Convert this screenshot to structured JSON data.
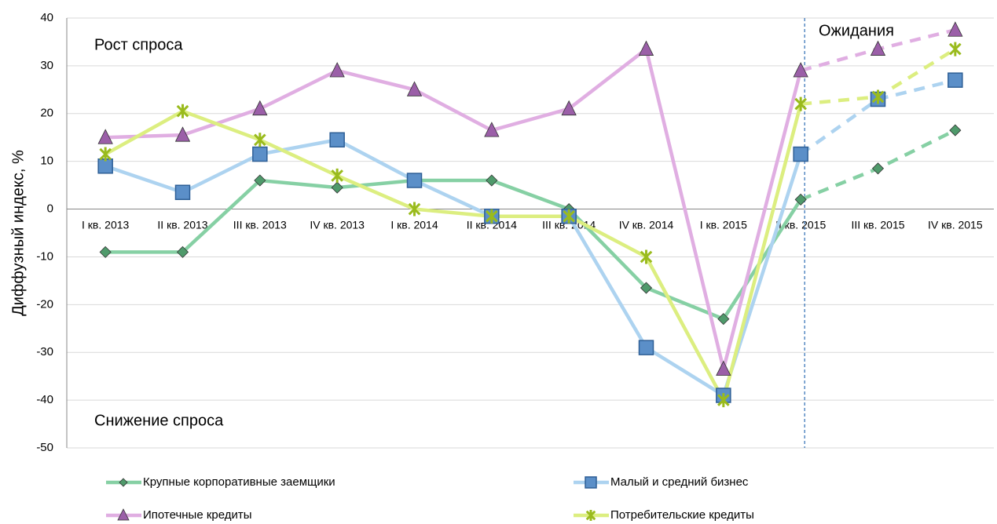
{
  "chart_data": {
    "type": "line",
    "y_label": "Диффузный индекс, %",
    "annotations": [
      "Рост спроса",
      "Снижение спроса",
      "Ожидания"
    ],
    "categories": [
      "I кв. 2013",
      "II кв. 2013",
      "III кв. 2013",
      "IV кв. 2013",
      "I кв. 2014",
      "II кв. 2014",
      "III кв. 2014",
      "IV кв. 2014",
      "I кв. 2015",
      "II кв. 2015",
      "III кв. 2015",
      "IV кв. 2015"
    ],
    "series": [
      {
        "name": "Крупные корпоративные заемщики",
        "color": "#86d0a4",
        "marker": "diamond",
        "marker_color": "#4f9a6b",
        "values": [
          -9,
          -9,
          6,
          4.5,
          6,
          6,
          0,
          -16.5,
          -23,
          2,
          8.5,
          16.5
        ]
      },
      {
        "name": "Малый и средний бизнес",
        "color": "#add3f0",
        "marker": "square",
        "marker_color": "#5b8fc8",
        "values": [
          9,
          3.5,
          11.5,
          14.5,
          6,
          -1.5,
          -1.5,
          -29,
          -39,
          11.5,
          23,
          27
        ]
      },
      {
        "name": "Ипотечные кредиты",
        "color": "#e0aee2",
        "marker": "triangle",
        "marker_color": "#9b5fa8",
        "values": [
          15,
          15.5,
          21,
          29,
          25,
          16.5,
          21,
          33.5,
          -33.5,
          29,
          33.5,
          37.5
        ]
      },
      {
        "name": "Потребительские кредиты",
        "color": "#dcee80",
        "marker": "x",
        "marker_color": "#9abb1d",
        "values": [
          11.5,
          20.5,
          14.5,
          7,
          0,
          -1.5,
          -1.5,
          -10,
          -40,
          22,
          23.5,
          33.5
        ]
      }
    ],
    "dashed_from": 9,
    "ylim": [
      -50,
      40
    ],
    "yticks": [
      -50,
      -40,
      -30,
      -20,
      -10,
      0,
      10,
      20,
      30,
      40
    ],
    "grid": true
  }
}
